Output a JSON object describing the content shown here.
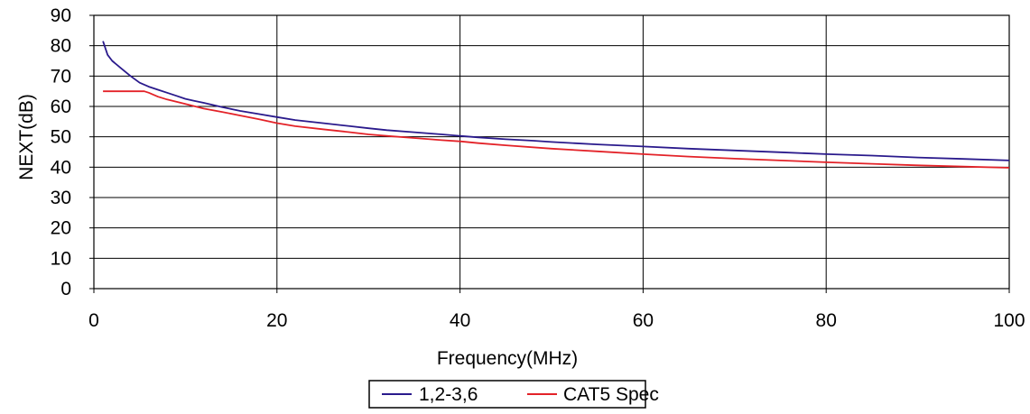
{
  "chart_data": {
    "type": "line",
    "title": "",
    "xlabel": "Frequency(MHz)",
    "ylabel": "NEXT(dB)",
    "xlim": [
      0,
      100
    ],
    "ylim": [
      0,
      90
    ],
    "x_ticks": [
      0,
      20,
      40,
      60,
      80,
      100
    ],
    "y_ticks": [
      0,
      10,
      20,
      30,
      40,
      50,
      60,
      70,
      80,
      90
    ],
    "grid": true,
    "legend_position": "bottom-center",
    "series": [
      {
        "name": "1,2-3,6",
        "color": "#2a1a8c",
        "x": [
          1,
          1.5,
          2,
          3,
          4,
          5,
          6,
          7,
          8,
          9,
          10,
          11,
          12,
          14,
          16,
          18,
          20,
          22,
          25,
          28,
          30,
          32,
          35,
          38,
          40,
          42,
          45,
          48,
          50,
          55,
          60,
          65,
          70,
          75,
          80,
          85,
          90,
          95,
          100
        ],
        "values": [
          81.5,
          77,
          75,
          72.5,
          70,
          67.8,
          66.5,
          65.5,
          64.5,
          63.5,
          62.5,
          61.8,
          61.2,
          59.8,
          58.5,
          57.5,
          56.5,
          55.5,
          54.5,
          53.5,
          52.8,
          52.2,
          51.5,
          50.8,
          50.3,
          49.8,
          49.2,
          48.7,
          48.3,
          47.5,
          46.8,
          46.1,
          45.5,
          44.9,
          44.3,
          43.8,
          43.2,
          42.7,
          42.2
        ]
      },
      {
        "name": "CAT5 Spec",
        "color": "#e32228",
        "x": [
          1,
          2,
          3,
          4,
          5,
          5.5,
          6,
          7,
          8,
          10,
          12,
          14,
          16,
          18,
          20,
          22,
          25,
          28,
          30,
          32,
          35,
          38,
          40,
          42,
          45,
          50,
          55,
          60,
          65,
          70,
          75,
          80,
          85,
          90,
          95,
          100
        ],
        "values": [
          65,
          65,
          65,
          65,
          65,
          65,
          64.5,
          63.2,
          62.3,
          60.8,
          59.3,
          58.2,
          57,
          55.8,
          54.5,
          53.5,
          52.5,
          51.5,
          50.8,
          50.3,
          49.6,
          48.9,
          48.5,
          47.9,
          47.2,
          46.1,
          45.2,
          44.3,
          43.5,
          42.8,
          42.2,
          41.6,
          41.1,
          40.6,
          40.2,
          39.8
        ]
      }
    ]
  }
}
